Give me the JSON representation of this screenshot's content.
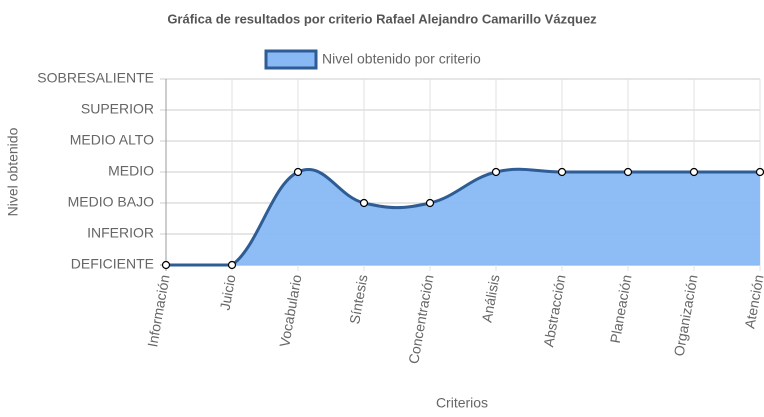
{
  "chart_data": {
    "type": "line",
    "title": "Gráfica de resultados por criterio Rafael Alejandro Camarillo Vázquez",
    "xlabel": "Criterios",
    "ylabel": "Nivel obtenido",
    "categories": [
      "Información",
      "Juicio",
      "Vocabulario",
      "Síntesis",
      "Concentración",
      "Análisis",
      "Abstracción",
      "Planeación",
      "Organización",
      "Atención"
    ],
    "series": [
      {
        "name": "Nivel obtenido por criterio",
        "color": "#2e5c94",
        "fill_color": "#88b9f4",
        "values": [
          0,
          0,
          3,
          2,
          2,
          3,
          3,
          3,
          3,
          3
        ]
      }
    ],
    "ylim": [
      0,
      6
    ],
    "yticks": [
      {
        "value": 0,
        "label": "DEFICIENTE"
      },
      {
        "value": 1,
        "label": "INFERIOR"
      },
      {
        "value": 2,
        "label": "MEDIO BAJO"
      },
      {
        "value": 3,
        "label": "MEDIO"
      },
      {
        "value": 4,
        "label": "MEDIO ALTO"
      },
      {
        "value": 5,
        "label": "SUPERIOR"
      },
      {
        "value": 6,
        "label": "SOBRESALIENTE"
      }
    ],
    "grid": true,
    "fill": true,
    "legend": "top"
  }
}
